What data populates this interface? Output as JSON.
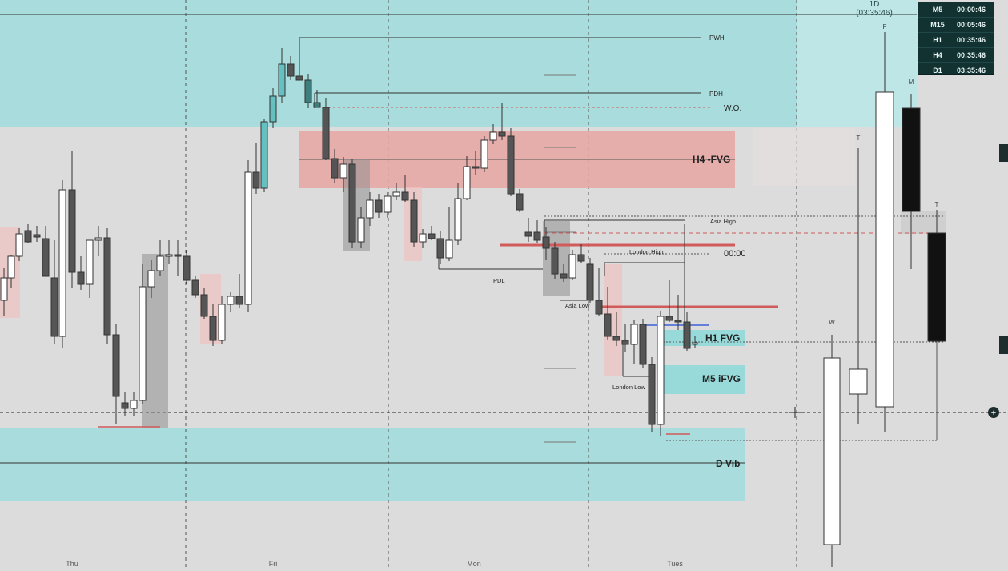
{
  "chart_data": {
    "type": "candlestick",
    "day_labels": [
      "Thu",
      "Fri",
      "Mon",
      "Tues"
    ],
    "zones": {
      "premium_label": "",
      "h4_fvg": "H4 -FVG",
      "h1_fvg": "H1 FVG",
      "m5_ifvg": "M5 iFVG",
      "d_vib": "D Vib"
    },
    "levels": {
      "pwh": "PWH",
      "pdh": "PDH",
      "wo": "W.O.",
      "asia_high": "Asia High",
      "london_high": "London High",
      "pdl": "PDL",
      "asia_low": "Asia Low",
      "london_low": "London Low",
      "time_marker": "00:00"
    },
    "htf_labels": [
      "W",
      "T",
      "F",
      "M",
      "T"
    ],
    "colors": {
      "premium_zone": "#a9dcdc",
      "discount_zone": "#a9dcdc",
      "background": "#dcdcdc",
      "h4_fvg": "#e8a6a2",
      "bull": "#ffffff",
      "bear": "#555555",
      "mitigated_bull": "#66c0c0",
      "red_line": "#d15a5a",
      "blue_line": "#3d5fd8",
      "teal_box": "#98dada"
    }
  },
  "top_widget": {
    "period": "1D",
    "countdown": "(03:35:46)"
  },
  "timeframe_panel": [
    {
      "tf": "M5",
      "countdown": "00:00:46"
    },
    {
      "tf": "M15",
      "countdown": "00:05:46"
    },
    {
      "tf": "H1",
      "countdown": "00:35:46"
    },
    {
      "tf": "H4",
      "countdown": "00:35:46"
    },
    {
      "tf": "D1",
      "countdown": "03:35:46"
    }
  ]
}
